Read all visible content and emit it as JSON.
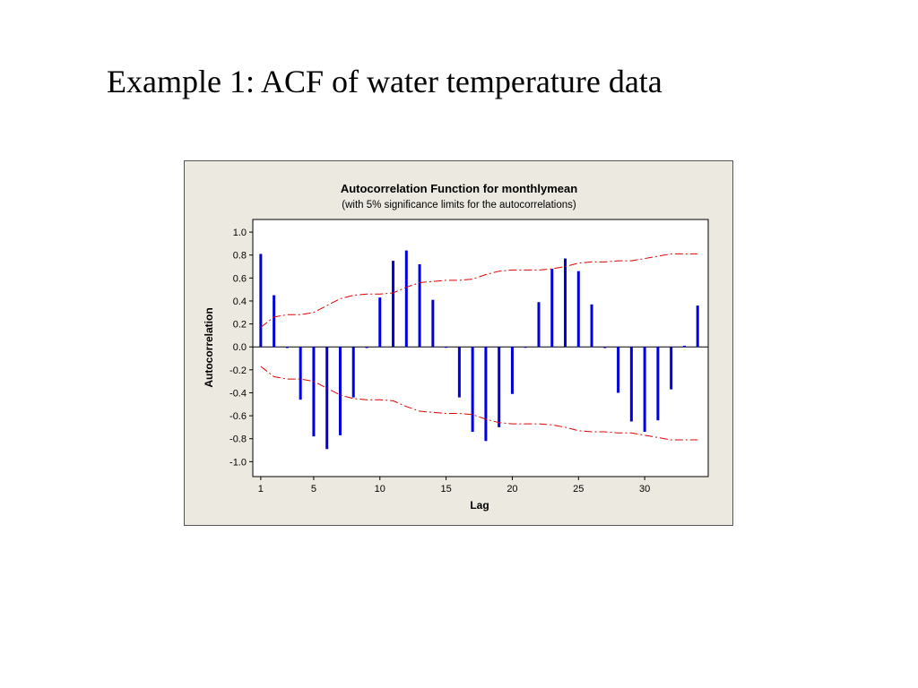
{
  "slide": {
    "title": "Example 1: ACF of water temperature data"
  },
  "colors": {
    "bar": "#0000DD",
    "limits": "#DD0000",
    "panel": "#ECE9E1",
    "plot_bg": "#FFFFFF"
  },
  "chart_data": {
    "type": "bar",
    "title": "Autocorrelation Function for monthlymean",
    "subtitle": "(with 5% significance limits for the autocorrelations)",
    "xlabel": "Lag",
    "ylabel": "Autocorrelation",
    "xlim": [
      0.4,
      34.8
    ],
    "ylim": [
      -1.13,
      1.11
    ],
    "x_ticks": [
      1,
      5,
      10,
      15,
      20,
      25,
      30
    ],
    "y_ticks": [
      -1.0,
      -0.8,
      -0.6,
      -0.4,
      -0.2,
      0.0,
      0.2,
      0.4,
      0.6,
      0.8,
      1.0
    ],
    "y_tick_labels": [
      "-1.0",
      "-0.8",
      "-0.6",
      "-0.4",
      "-0.2",
      "0.0",
      "0.2",
      "0.4",
      "0.6",
      "0.8",
      "1.0"
    ],
    "lags": [
      1,
      2,
      3,
      4,
      5,
      6,
      7,
      8,
      9,
      10,
      11,
      12,
      13,
      14,
      15,
      16,
      17,
      18,
      19,
      20,
      21,
      22,
      23,
      24,
      25,
      26,
      27,
      28,
      29,
      30,
      31,
      32,
      33,
      34
    ],
    "values": [
      0.81,
      0.45,
      -0.01,
      -0.46,
      -0.78,
      -0.89,
      -0.77,
      -0.44,
      -0.01,
      0.43,
      0.75,
      0.84,
      0.72,
      0.41,
      0.0,
      -0.44,
      -0.74,
      -0.82,
      -0.7,
      -0.41,
      0.0,
      0.39,
      0.68,
      0.77,
      0.66,
      0.37,
      -0.01,
      -0.4,
      -0.65,
      -0.74,
      -0.64,
      -0.37,
      0.01,
      0.36
    ],
    "upper_limit": [
      0.17,
      0.26,
      0.28,
      0.28,
      0.3,
      0.36,
      0.42,
      0.45,
      0.46,
      0.46,
      0.47,
      0.52,
      0.56,
      0.57,
      0.58,
      0.58,
      0.59,
      0.63,
      0.66,
      0.67,
      0.67,
      0.67,
      0.68,
      0.7,
      0.73,
      0.74,
      0.74,
      0.75,
      0.75,
      0.77,
      0.79,
      0.81,
      0.81,
      0.81
    ],
    "lower_limit": [
      -0.17,
      -0.26,
      -0.28,
      -0.28,
      -0.3,
      -0.36,
      -0.42,
      -0.45,
      -0.46,
      -0.46,
      -0.47,
      -0.52,
      -0.56,
      -0.57,
      -0.58,
      -0.58,
      -0.59,
      -0.63,
      -0.66,
      -0.67,
      -0.67,
      -0.67,
      -0.68,
      -0.7,
      -0.73,
      -0.74,
      -0.74,
      -0.75,
      -0.75,
      -0.77,
      -0.79,
      -0.81,
      -0.81,
      -0.81
    ],
    "grid": false,
    "legend": "none"
  }
}
